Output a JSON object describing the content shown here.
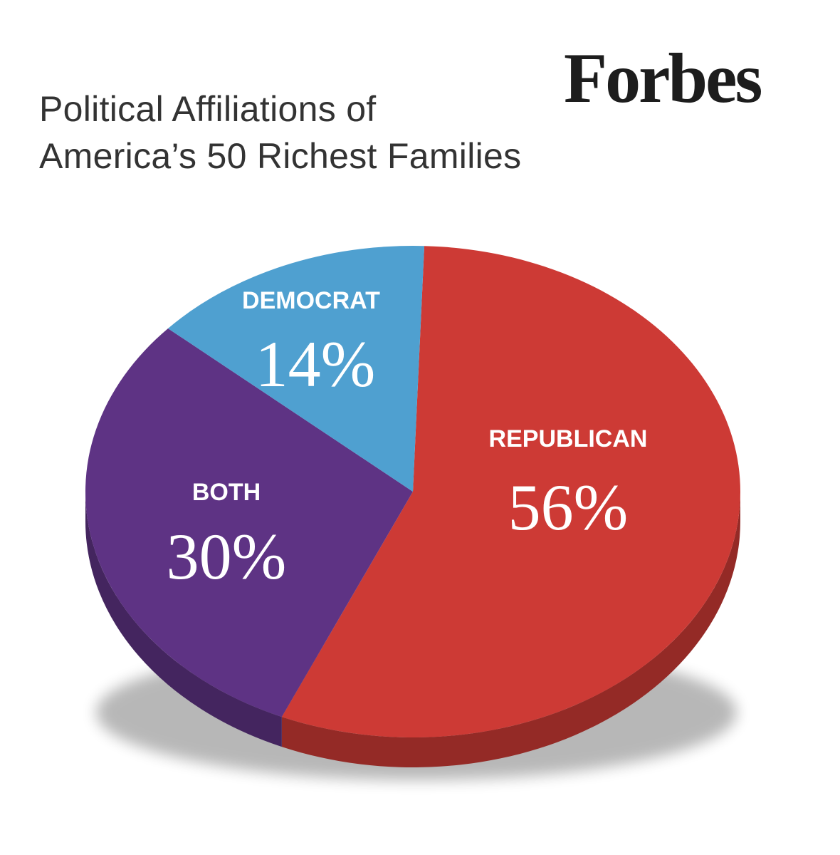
{
  "brand": "Forbes",
  "title_lines": [
    "Political Affiliations of",
    "America’s 50 Richest Families"
  ],
  "chart_data": {
    "type": "pie",
    "title": "Political Affiliations of America’s 50 Richest Families",
    "unit": "%",
    "slices": [
      {
        "label": "REPUBLICAN",
        "value": 56,
        "value_label": "56%",
        "color": "#cd3a35"
      },
      {
        "label": "BOTH",
        "value": 30,
        "value_label": "30%",
        "color": "#5e3384"
      },
      {
        "label": "DEMOCRAT",
        "value": 14,
        "value_label": "14%",
        "color": "#4fa0d0"
      }
    ]
  }
}
